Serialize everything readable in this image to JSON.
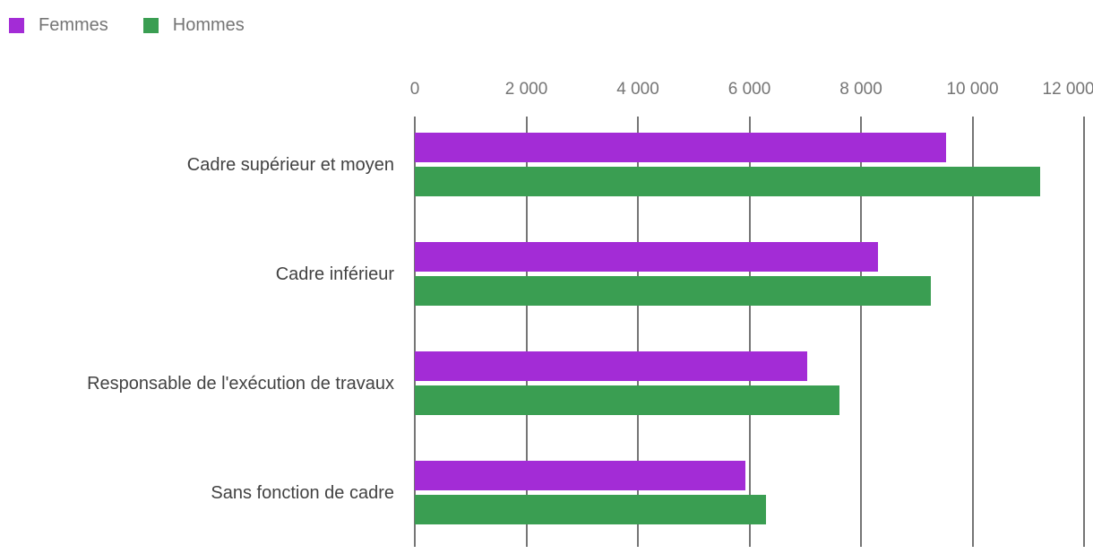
{
  "colors": {
    "femmes": "#a32cd6",
    "hommes": "#3a9e52",
    "gridline": "#757575",
    "axis_text": "#757575",
    "category_text": "#424242",
    "legend_text": "#757575",
    "background": "#ffffff"
  },
  "legend": {
    "position": "top-left",
    "items": [
      {
        "label": "Femmes",
        "color": "#a32cd6"
      },
      {
        "label": "Hommes",
        "color": "#3a9e52"
      }
    ]
  },
  "chart_data": {
    "type": "bar",
    "orientation": "horizontal",
    "title": "",
    "xlabel": "",
    "ylabel": "",
    "categories": [
      "Cadre supérieur et moyen",
      "Cadre inférieur",
      "Responsable de l'exécution de travaux",
      "Sans fonction de cadre"
    ],
    "series": [
      {
        "name": "Femmes",
        "color": "#a32cd6",
        "values": [
          9520,
          8300,
          7040,
          5920
        ]
      },
      {
        "name": "Hommes",
        "color": "#3a9e52",
        "values": [
          11220,
          9260,
          7620,
          6290
        ]
      }
    ],
    "xlim": [
      0,
      12000
    ],
    "x_ticks": [
      {
        "value": 0,
        "label": "0"
      },
      {
        "value": 2000,
        "label": "2 000"
      },
      {
        "value": 4000,
        "label": "4 000"
      },
      {
        "value": 6000,
        "label": "6 000"
      },
      {
        "value": 8000,
        "label": "8 000"
      },
      {
        "value": 10000,
        "label": "10 000"
      },
      {
        "value": 12000,
        "label": "12 000"
      }
    ],
    "grid": true,
    "legend_position": "top-left"
  }
}
